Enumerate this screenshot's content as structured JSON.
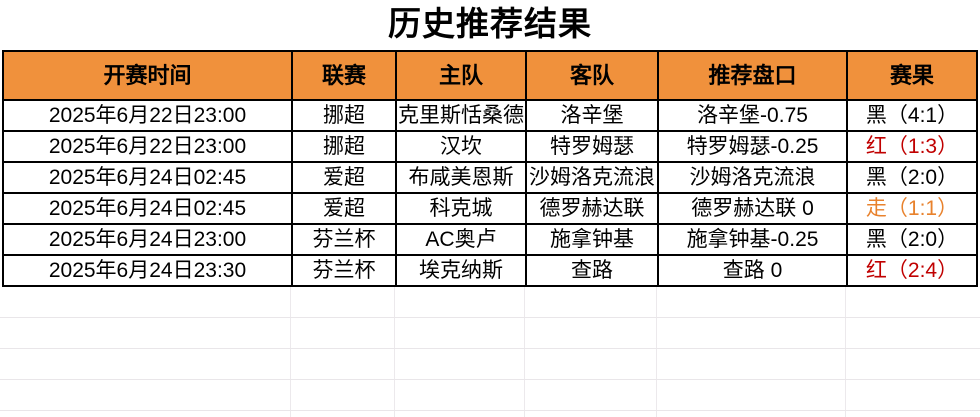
{
  "title": "历史推荐结果",
  "colors": {
    "header_bg": "#F0913C",
    "table_border": "#000000",
    "grid_light": "#E9E6E9",
    "result_black": "#000000",
    "result_red": "#C00000",
    "result_push_orange": "#E8822D"
  },
  "table": {
    "columns": [
      "开赛时间",
      "联赛",
      "主队",
      "客队",
      "推荐盘口",
      "赛果"
    ],
    "rows": [
      {
        "time": "2025年6月22日23:00",
        "league": "挪超",
        "home": "克里斯恬桑德",
        "away": "洛辛堡",
        "handicap": "洛辛堡-0.75",
        "result": "黑（4:1）",
        "result_color": "#000000"
      },
      {
        "time": "2025年6月22日23:00",
        "league": "挪超",
        "home": "汉坎",
        "away": "特罗姆瑟",
        "handicap": "特罗姆瑟-0.25",
        "result": "红（1:3）",
        "result_color": "#C00000"
      },
      {
        "time": "2025年6月24日02:45",
        "league": "爱超",
        "home": "布咸美恩斯",
        "away": "沙姆洛克流浪",
        "handicap": "沙姆洛克流浪",
        "result": "黑（2:0）",
        "result_color": "#000000"
      },
      {
        "time": "2025年6月24日02:45",
        "league": "爱超",
        "home": "科克城",
        "away": "德罗赫达联",
        "handicap": "德罗赫达联 0",
        "result": "走（1:1）",
        "result_color": "#E8822D"
      },
      {
        "time": "2025年6月24日23:00",
        "league": "芬兰杯",
        "home": "AC奥卢",
        "away": "施拿钟基",
        "handicap": "施拿钟基-0.25",
        "result": "黑（2:0）",
        "result_color": "#000000"
      },
      {
        "time": "2025年6月24日23:30",
        "league": "芬兰杯",
        "home": "埃克纳斯",
        "away": "查路",
        "handicap": "查路 0",
        "result": "红（2:4）",
        "result_color": "#C00000"
      }
    ]
  }
}
